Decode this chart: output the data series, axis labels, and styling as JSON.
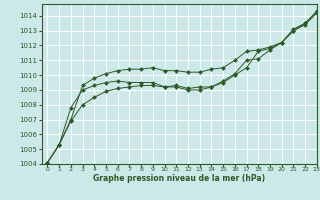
{
  "xlabel": "Graphe pression niveau de la mer (hPa)",
  "xlim": [
    -0.5,
    23
  ],
  "ylim": [
    1004,
    1014.8
  ],
  "yticks": [
    1004,
    1005,
    1006,
    1007,
    1008,
    1009,
    1010,
    1011,
    1012,
    1013,
    1014
  ],
  "xticks": [
    0,
    1,
    2,
    3,
    4,
    5,
    6,
    7,
    8,
    9,
    10,
    11,
    12,
    13,
    14,
    15,
    16,
    17,
    18,
    19,
    20,
    21,
    22,
    23
  ],
  "background_color": "#cce8e8",
  "grid_color": "#ffffff",
  "line_color": "#2d5a27",
  "marker_color": "#2d5a27",
  "line1_x": [
    0,
    1,
    2,
    3,
    4,
    5,
    6,
    7,
    8,
    9,
    10,
    11,
    12,
    13,
    14,
    15,
    16,
    17,
    18,
    19,
    20,
    21,
    22,
    23
  ],
  "line1_y": [
    1004.1,
    1005.3,
    1006.9,
    1008.0,
    1008.5,
    1008.9,
    1009.1,
    1009.2,
    1009.3,
    1009.3,
    1009.2,
    1009.3,
    1009.1,
    1009.2,
    1009.2,
    1009.5,
    1010.0,
    1010.5,
    1011.6,
    1011.8,
    1012.2,
    1013.0,
    1013.4,
    1014.2
  ],
  "line2_x": [
    0,
    1,
    2,
    3,
    4,
    5,
    6,
    7,
    8,
    9,
    10,
    11,
    12,
    13,
    14,
    15,
    16,
    17,
    18,
    19,
    20,
    21,
    22,
    23
  ],
  "line2_y": [
    1004.1,
    1005.3,
    1007.8,
    1009.0,
    1009.3,
    1009.5,
    1009.6,
    1009.5,
    1009.5,
    1009.5,
    1009.2,
    1009.2,
    1009.0,
    1009.0,
    1009.2,
    1009.6,
    1010.1,
    1011.0,
    1011.1,
    1011.7,
    1012.2,
    1013.0,
    1013.5,
    1014.3
  ],
  "line3_x": [
    0,
    1,
    2,
    3,
    4,
    5,
    6,
    7,
    8,
    9,
    10,
    11,
    12,
    13,
    14,
    15,
    16,
    17,
    18,
    19,
    20,
    21,
    22,
    23
  ],
  "line3_y": [
    1004.1,
    1005.3,
    1007.0,
    1009.3,
    1009.8,
    1010.1,
    1010.3,
    1010.4,
    1010.4,
    1010.5,
    1010.3,
    1010.3,
    1010.2,
    1010.2,
    1010.4,
    1010.5,
    1011.0,
    1011.6,
    1011.7,
    1011.9,
    1012.2,
    1013.1,
    1013.5,
    1014.3
  ]
}
